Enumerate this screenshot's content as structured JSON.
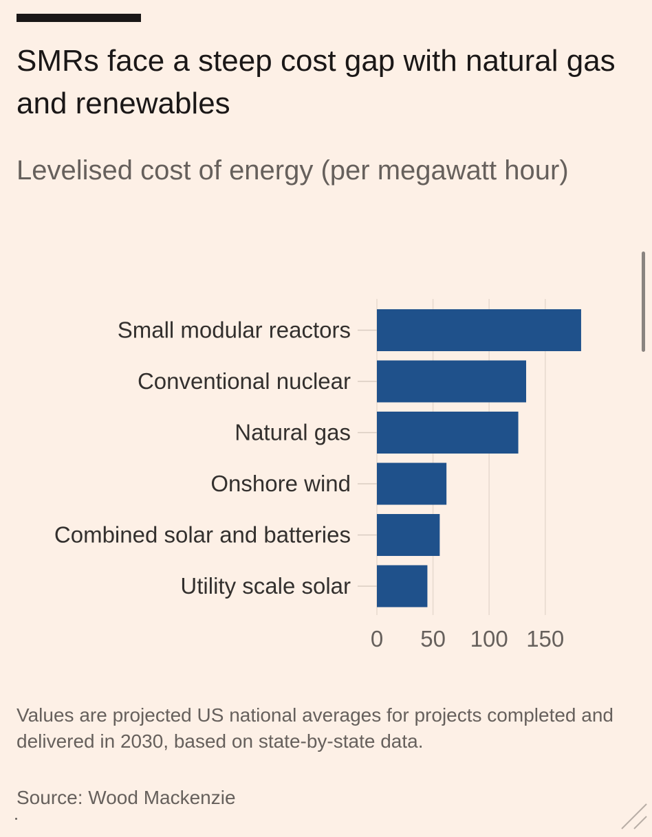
{
  "title": "SMRs face a steep cost gap with natural gas and renewables",
  "subtitle": "Levelised cost of energy (per megawatt hour)",
  "footnote": "Values are projected US national averages for projects completed and delivered in 2030, based on state-by-state data.",
  "source": "Source: Wood Mackenzie",
  "colors": {
    "bar": "#1f518b",
    "background": "#fdf0e6"
  },
  "chart_data": {
    "type": "bar",
    "orientation": "horizontal",
    "title": "Levelised cost of energy (per megawatt hour)",
    "categories": [
      "Small modular reactors",
      "Conventional nuclear",
      "Natural gas",
      "Onshore wind",
      "Combined solar and batteries",
      "Utility scale solar"
    ],
    "values": [
      182,
      133,
      126,
      62,
      56,
      45
    ],
    "xticks": [
      0,
      50,
      100,
      150
    ],
    "xlim": [
      0,
      190
    ],
    "xlabel": "",
    "ylabel": "",
    "grid": true
  }
}
